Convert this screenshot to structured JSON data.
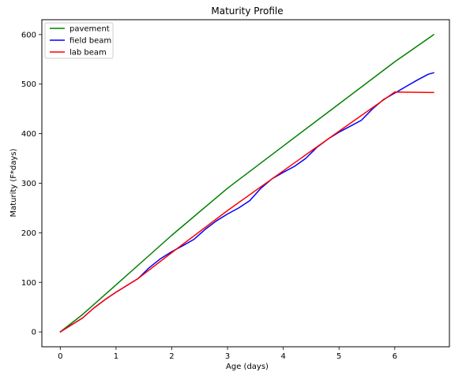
{
  "chart_data": {
    "type": "line",
    "title": "Maturity Profile",
    "xlabel": "Age (days)",
    "ylabel": "Maturity (F*days)",
    "xlim": [
      -0.33,
      6.98
    ],
    "ylim": [
      -30,
      630
    ],
    "xticks": [
      0,
      1,
      2,
      3,
      4,
      5,
      6
    ],
    "yticks": [
      0,
      100,
      200,
      300,
      400,
      500,
      600
    ],
    "grid": false,
    "legend_position": "upper-left",
    "series": [
      {
        "name": "pavement",
        "color": "#008000",
        "points": [
          [
            0,
            0
          ],
          [
            0.4,
            35
          ],
          [
            1.0,
            95
          ],
          [
            1.5,
            145
          ],
          [
            2.0,
            195
          ],
          [
            3.0,
            290
          ],
          [
            4.0,
            375
          ],
          [
            5.0,
            460
          ],
          [
            6.0,
            545
          ],
          [
            6.7,
            600
          ]
        ]
      },
      {
        "name": "field beam",
        "color": "#0000ff",
        "points": [
          [
            0,
            0
          ],
          [
            0.4,
            28
          ],
          [
            0.6,
            48
          ],
          [
            0.8,
            65
          ],
          [
            1.0,
            80
          ],
          [
            1.2,
            94
          ],
          [
            1.4,
            108
          ],
          [
            1.6,
            130
          ],
          [
            1.8,
            148
          ],
          [
            2.0,
            162
          ],
          [
            2.2,
            174
          ],
          [
            2.4,
            187
          ],
          [
            2.6,
            207
          ],
          [
            2.8,
            224
          ],
          [
            3.0,
            238
          ],
          [
            3.2,
            250
          ],
          [
            3.4,
            265
          ],
          [
            3.6,
            290
          ],
          [
            3.8,
            309
          ],
          [
            4.0,
            322
          ],
          [
            4.2,
            334
          ],
          [
            4.4,
            350
          ],
          [
            4.6,
            372
          ],
          [
            4.8,
            389
          ],
          [
            5.0,
            403
          ],
          [
            5.2,
            415
          ],
          [
            5.4,
            427
          ],
          [
            5.6,
            450
          ],
          [
            5.8,
            469
          ],
          [
            6.0,
            482
          ],
          [
            6.2,
            495
          ],
          [
            6.4,
            508
          ],
          [
            6.6,
            520
          ],
          [
            6.7,
            523
          ]
        ]
      },
      {
        "name": "lab beam",
        "color": "#ff0000",
        "points": [
          [
            0,
            0
          ],
          [
            0.4,
            28
          ],
          [
            0.6,
            48
          ],
          [
            0.8,
            65
          ],
          [
            1.0,
            80
          ],
          [
            1.2,
            94
          ],
          [
            1.4,
            108
          ],
          [
            2.0,
            160
          ],
          [
            3.0,
            245
          ],
          [
            4.0,
            325
          ],
          [
            5.0,
            405
          ],
          [
            6.0,
            484
          ],
          [
            6.7,
            483
          ]
        ]
      }
    ]
  }
}
